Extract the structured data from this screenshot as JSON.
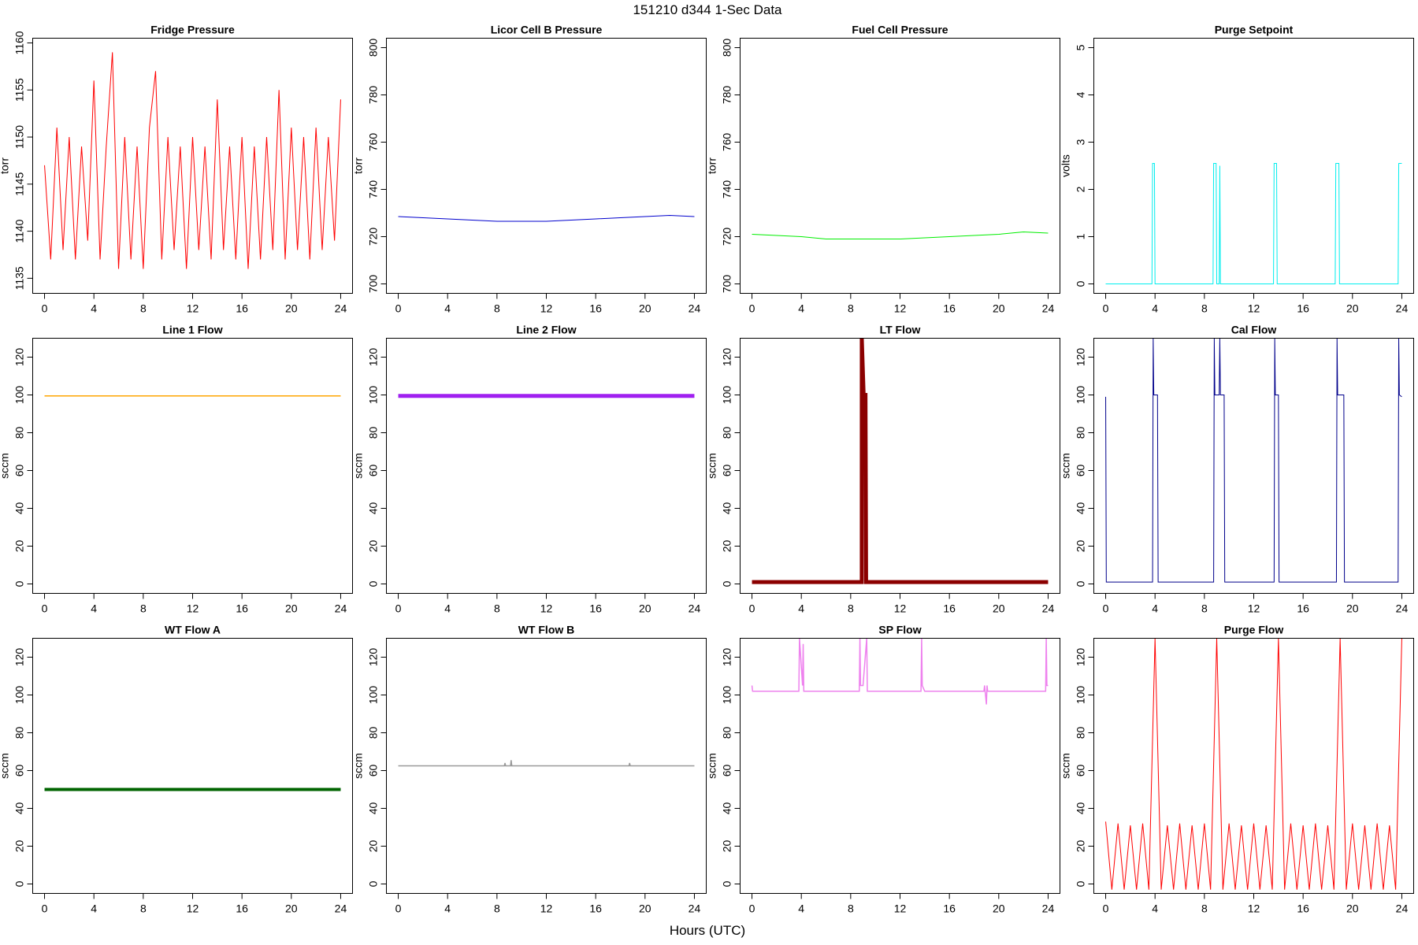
{
  "title": "151210   d344   1-Sec Data",
  "xlabel": "Hours (UTC)",
  "chart_data": [
    {
      "type": "line",
      "title": "Fridge Pressure",
      "ylabel": "torr",
      "color": "#ff0000",
      "linewidth": 1,
      "xlim": [
        -0.96,
        24.96
      ],
      "xticks": [
        0,
        4,
        8,
        12,
        16,
        20,
        24
      ],
      "ylim": [
        1133.4,
        1160.5
      ],
      "yticks": [
        1135,
        1140,
        1145,
        1150,
        1155,
        1160
      ],
      "x": [
        0,
        0.5,
        1,
        1.5,
        2,
        2.5,
        3,
        3.5,
        4,
        4.5,
        5,
        5.5,
        6,
        6.5,
        7,
        7.5,
        8,
        8.5,
        9,
        9.5,
        10,
        10.5,
        11,
        11.5,
        12,
        12.5,
        13,
        13.5,
        14,
        14.5,
        15,
        15.5,
        16,
        16.5,
        17,
        17.5,
        18,
        18.5,
        19,
        19.5,
        20,
        20.5,
        21,
        21.5,
        22,
        22.5,
        23,
        23.5,
        24
      ],
      "values": [
        1147,
        1137,
        1151,
        1138,
        1150,
        1137,
        1149,
        1139,
        1156,
        1137,
        1149,
        1159,
        1136,
        1150,
        1137,
        1149,
        1136,
        1151,
        1157,
        1137,
        1150,
        1138,
        1149,
        1136,
        1150,
        1138,
        1149,
        1137,
        1154,
        1138,
        1149,
        1137,
        1150,
        1136,
        1149,
        1137,
        1150,
        1138,
        1155,
        1137,
        1151,
        1138,
        1150,
        1137,
        1151,
        1138,
        1150,
        1139,
        1154
      ]
    },
    {
      "type": "line",
      "title": "Licor Cell B Pressure",
      "ylabel": "torr",
      "color": "#0000cd",
      "linewidth": 1,
      "xlim": [
        -0.96,
        24.96
      ],
      "xticks": [
        0,
        4,
        8,
        12,
        16,
        20,
        24
      ],
      "ylim": [
        696,
        804
      ],
      "yticks": [
        700,
        720,
        740,
        760,
        780,
        800
      ],
      "x": [
        0,
        2,
        4,
        6,
        8,
        10,
        12,
        14,
        16,
        18,
        20,
        22,
        24
      ],
      "values": [
        728.5,
        728,
        727.5,
        727,
        726.5,
        726.5,
        726.5,
        727,
        727.5,
        728,
        728.5,
        729,
        728.5
      ]
    },
    {
      "type": "line",
      "title": "Fuel Cell Pressure",
      "ylabel": "torr",
      "color": "#00ee00",
      "linewidth": 1,
      "xlim": [
        -0.96,
        24.96
      ],
      "xticks": [
        0,
        4,
        8,
        12,
        16,
        20,
        24
      ],
      "ylim": [
        696,
        804
      ],
      "yticks": [
        700,
        720,
        740,
        760,
        780,
        800
      ],
      "x": [
        0,
        2,
        4,
        6,
        8,
        10,
        12,
        14,
        16,
        18,
        20,
        22,
        24
      ],
      "values": [
        721,
        720.5,
        720,
        719,
        719,
        719,
        719,
        719.5,
        720,
        720.5,
        721,
        722,
        721.5
      ]
    },
    {
      "type": "line",
      "title": "Purge Setpoint",
      "ylabel": "volts",
      "color": "#00eeee",
      "linewidth": 1,
      "xlim": [
        -0.96,
        24.96
      ],
      "xticks": [
        0,
        4,
        8,
        12,
        16,
        20,
        24
      ],
      "ylim": [
        -0.2,
        5.2
      ],
      "yticks": [
        0,
        1,
        2,
        3,
        4,
        5
      ],
      "x": [
        0,
        3.75,
        3.8,
        3.95,
        4.0,
        8.7,
        8.75,
        8.95,
        9.0,
        9.2,
        9.25,
        9.3,
        13.6,
        13.65,
        13.85,
        13.9,
        18.6,
        18.65,
        18.9,
        18.95,
        23.7,
        23.75,
        24
      ],
      "values": [
        0,
        0,
        2.55,
        2.55,
        0,
        0,
        2.55,
        2.55,
        0,
        0,
        2.5,
        0,
        0,
        2.55,
        2.55,
        0,
        0,
        2.55,
        2.55,
        0,
        0,
        2.55,
        2.55
      ]
    },
    {
      "type": "line",
      "title": "Line 1 Flow",
      "ylabel": "sccm",
      "color": "#ffa500",
      "linewidth": 1.5,
      "xlim": [
        -0.96,
        24.96
      ],
      "xticks": [
        0,
        4,
        8,
        12,
        16,
        20,
        24
      ],
      "ylim": [
        -5,
        130
      ],
      "yticks": [
        0,
        20,
        40,
        60,
        80,
        100,
        120
      ],
      "x": [
        0,
        24
      ],
      "values": [
        99.5,
        99.5
      ]
    },
    {
      "type": "line",
      "title": "Line 2 Flow",
      "ylabel": "sccm",
      "color": "#a020f0",
      "linewidth": 5,
      "xlim": [
        -0.96,
        24.96
      ],
      "xticks": [
        0,
        4,
        8,
        12,
        16,
        20,
        24
      ],
      "ylim": [
        -5,
        130
      ],
      "yticks": [
        0,
        20,
        40,
        60,
        80,
        100,
        120
      ],
      "x": [
        0,
        24
      ],
      "values": [
        99.5,
        99.5
      ]
    },
    {
      "type": "line",
      "title": "LT Flow",
      "ylabel": "sccm",
      "color": "#8b0000",
      "linewidth": 5,
      "xlim": [
        -0.96,
        24.96
      ],
      "xticks": [
        0,
        4,
        8,
        12,
        16,
        20,
        24
      ],
      "ylim": [
        -5,
        130
      ],
      "yticks": [
        0,
        20,
        40,
        60,
        80,
        100,
        120
      ],
      "x": [
        0,
        8.9,
        8.9,
        9.05,
        9.1,
        9.2,
        9.25,
        24
      ],
      "values": [
        1,
        1,
        130,
        100,
        100,
        100,
        1,
        1
      ]
    },
    {
      "type": "line",
      "title": "Cal Flow",
      "ylabel": "sccm",
      "color": "#00008b",
      "linewidth": 1,
      "xlim": [
        -0.96,
        24.96
      ],
      "xticks": [
        0,
        4,
        8,
        12,
        16,
        20,
        24
      ],
      "ylim": [
        -5,
        130
      ],
      "yticks": [
        0,
        20,
        40,
        60,
        80,
        100,
        120
      ],
      "x": [
        0,
        0.05,
        0.1,
        3.8,
        3.85,
        3.9,
        4.2,
        4.25,
        8.75,
        8.8,
        8.85,
        9.2,
        9.25,
        9.3,
        9.6,
        9.65,
        13.65,
        13.7,
        13.75,
        14.0,
        14.05,
        18.7,
        18.75,
        18.8,
        19.3,
        19.35,
        23.7,
        23.75,
        23.8,
        24
      ],
      "values": [
        99,
        1,
        1,
        1,
        130,
        100,
        100,
        1,
        1,
        130,
        100,
        100,
        130,
        100,
        100,
        1,
        1,
        130,
        100,
        100,
        1,
        1,
        130,
        100,
        100,
        1,
        1,
        130,
        100,
        99
      ]
    },
    {
      "type": "line",
      "title": "WT Flow A",
      "ylabel": "sccm",
      "color": "#006400",
      "linewidth": 4,
      "xlim": [
        -0.96,
        24.96
      ],
      "xticks": [
        0,
        4,
        8,
        12,
        16,
        20,
        24
      ],
      "ylim": [
        -5,
        130
      ],
      "yticks": [
        0,
        20,
        40,
        60,
        80,
        100,
        120
      ],
      "x": [
        0,
        24
      ],
      "values": [
        50,
        50
      ]
    },
    {
      "type": "line",
      "title": "WT Flow B",
      "ylabel": "sccm",
      "color": "#999999",
      "linewidth": 1.5,
      "xlim": [
        -0.96,
        24.96
      ],
      "xticks": [
        0,
        4,
        8,
        12,
        16,
        20,
        24
      ],
      "ylim": [
        -5,
        130
      ],
      "yticks": [
        0,
        20,
        40,
        60,
        80,
        100,
        120
      ],
      "x": [
        0,
        8.6,
        8.65,
        8.7,
        9.1,
        9.15,
        9.2,
        18.7,
        18.75,
        18.8,
        24
      ],
      "values": [
        62.5,
        62.5,
        64,
        62.5,
        62.5,
        65.5,
        62.5,
        62.5,
        64,
        62.5,
        62.5
      ]
    },
    {
      "type": "line",
      "title": "SP Flow",
      "ylabel": "sccm",
      "color": "#ee82ee",
      "linewidth": 1.5,
      "xlim": [
        -0.96,
        24.96
      ],
      "xticks": [
        0,
        4,
        8,
        12,
        16,
        20,
        24
      ],
      "ylim": [
        -5,
        130
      ],
      "yticks": [
        0,
        20,
        40,
        60,
        80,
        100,
        120
      ],
      "x": [
        0,
        0.05,
        0.1,
        3.8,
        3.85,
        4.1,
        4.15,
        4.2,
        8.7,
        8.75,
        8.8,
        9.0,
        9.3,
        9.35,
        13.7,
        13.75,
        13.8,
        14.0,
        18.8,
        18.85,
        19.0,
        19.05,
        19.1,
        23.8,
        23.85,
        23.9,
        24
      ],
      "values": [
        105,
        102,
        102,
        102,
        130,
        105,
        127,
        102,
        102,
        130,
        105,
        105,
        130,
        102,
        102,
        130,
        105,
        102,
        102,
        105,
        95,
        105,
        102,
        102,
        130,
        105,
        105
      ]
    },
    {
      "type": "line",
      "title": "Purge Flow",
      "ylabel": "sccm",
      "color": "#ff0000",
      "linewidth": 1,
      "xlim": [
        -0.96,
        24.96
      ],
      "xticks": [
        0,
        4,
        8,
        12,
        16,
        20,
        24
      ],
      "ylim": [
        -5,
        130
      ],
      "yticks": [
        0,
        20,
        40,
        60,
        80,
        100,
        120
      ],
      "x": [
        0,
        0.5,
        1,
        1.5,
        2,
        2.5,
        3,
        3.5,
        4,
        4.5,
        5,
        5.5,
        6,
        6.5,
        7,
        7.5,
        8,
        8.5,
        9,
        9.5,
        10,
        10.5,
        11,
        11.5,
        12,
        12.5,
        13,
        13.5,
        14,
        14.5,
        15,
        15.5,
        16,
        16.5,
        17,
        17.5,
        18,
        18.5,
        19,
        19.5,
        20,
        20.5,
        21,
        21.5,
        22,
        22.5,
        23,
        23.5,
        24
      ],
      "values": [
        33,
        -3,
        32,
        -3,
        31,
        -3,
        32,
        -3,
        130,
        -3,
        31,
        -3,
        32,
        -3,
        31,
        -3,
        32,
        -3,
        130,
        -3,
        32,
        -3,
        31,
        -3,
        32,
        -3,
        31,
        -3,
        130,
        -3,
        32,
        -3,
        31,
        -3,
        32,
        -3,
        31,
        -3,
        130,
        -3,
        32,
        -3,
        31,
        -3,
        32,
        -3,
        31,
        -3,
        130
      ]
    }
  ]
}
